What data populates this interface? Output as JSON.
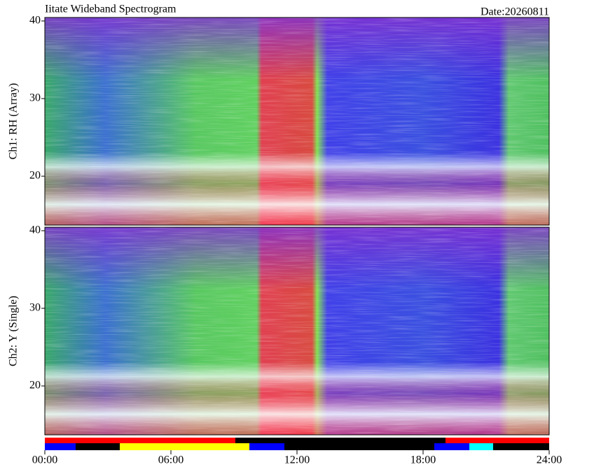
{
  "chart_data": [
    {
      "type": "heatmap",
      "title": "Iitate Wideband Spectrogram",
      "subtitle": "Date:20260811",
      "y_label": "Ch1: RH (Array)",
      "ylim": [
        13.7,
        40.45
      ],
      "yticks": [
        20,
        30,
        40
      ]
    },
    {
      "type": "heatmap",
      "y_label": "Ch2: Y (Single)",
      "ylim": [
        13.7,
        40.45
      ],
      "yticks": [
        20,
        30,
        40
      ],
      "xlim": [
        0,
        24
      ],
      "xticks": [
        {
          "value": 0,
          "label": "00:00"
        },
        {
          "value": 6,
          "label": "06:00"
        },
        {
          "value": 12,
          "label": "12:00"
        },
        {
          "value": 18,
          "label": "18:00"
        },
        {
          "value": 24,
          "label": "24:00"
        }
      ]
    }
  ]
}
